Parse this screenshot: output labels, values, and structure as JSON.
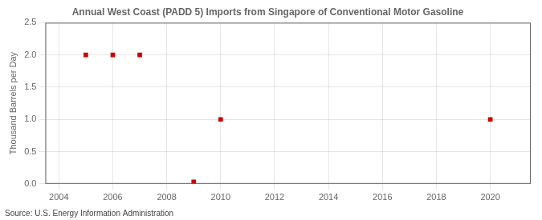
{
  "chart_data": {
    "type": "scatter",
    "title": "Annual West Coast (PADD 5) Imports from Singapore of Conventional Motor Gasoline",
    "y_label": "Thousand Barrels per Day",
    "annotations": [
      "Source: U.S. Energy Information Administration"
    ],
    "x": [
      2005,
      2006,
      2007,
      2009,
      2010,
      2020
    ],
    "values": [
      2.0,
      2.0,
      2.0,
      0.03,
      1.0,
      1.0
    ],
    "color": "#cc0000",
    "marker": "square",
    "xlim": [
      2003.5,
      2021.5
    ],
    "xticks": [
      2004,
      2006,
      2008,
      2010,
      2012,
      2014,
      2016,
      2018,
      2020
    ],
    "ylim": [
      0.0,
      2.5
    ],
    "yticks": [
      {
        "value": 0.0,
        "label": "0.0"
      },
      0.5,
      {
        "value": 1.0,
        "label": "1.0"
      },
      1.5,
      {
        "value": 2.0,
        "label": "2.0"
      },
      2.5
    ],
    "grid": true
  }
}
